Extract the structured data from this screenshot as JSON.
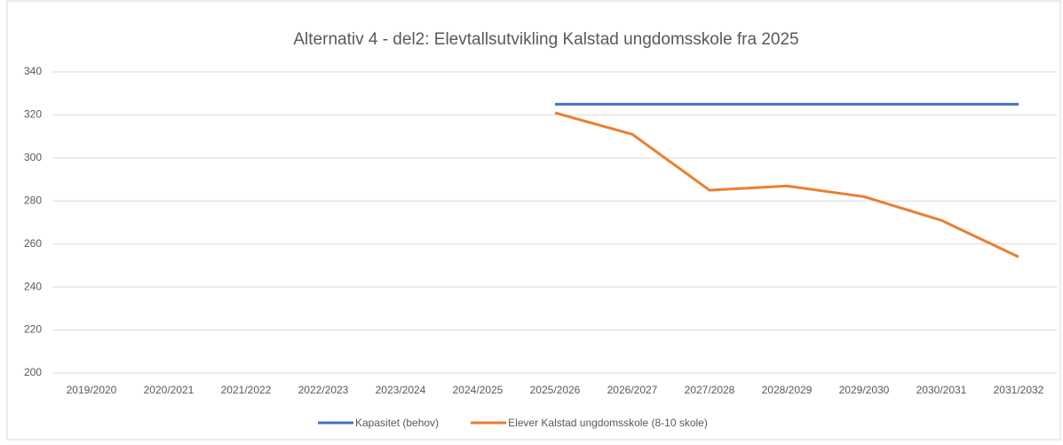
{
  "chart_data": {
    "type": "line",
    "title": "Alternativ 4 - del2: Elevtallsutvikling Kalstad ungdomsskole fra 2025",
    "categories": [
      "2019/2020",
      "2020/2021",
      "2021/2022",
      "2022/2023",
      "2023/2024",
      "2024/2025",
      "2025/2026",
      "2026/2027",
      "2027/2028",
      "2028/2029",
      "2029/2030",
      "2030/2031",
      "2031/2032"
    ],
    "series": [
      {
        "name": "Kapasitet (behov)",
        "color": "#4472c4",
        "values": [
          null,
          null,
          null,
          null,
          null,
          null,
          325,
          325,
          325,
          325,
          325,
          325,
          325
        ]
      },
      {
        "name": "Elever Kalstad ungdomsskole (8-10 skole)",
        "color": "#ed7d31",
        "values": [
          null,
          null,
          null,
          null,
          null,
          null,
          321,
          311,
          285,
          287,
          282,
          271,
          254
        ]
      }
    ],
    "ylim": [
      200,
      340
    ],
    "yticks": [
      200,
      220,
      240,
      260,
      280,
      300,
      320,
      340
    ],
    "grid": true,
    "legend": "bottom"
  }
}
